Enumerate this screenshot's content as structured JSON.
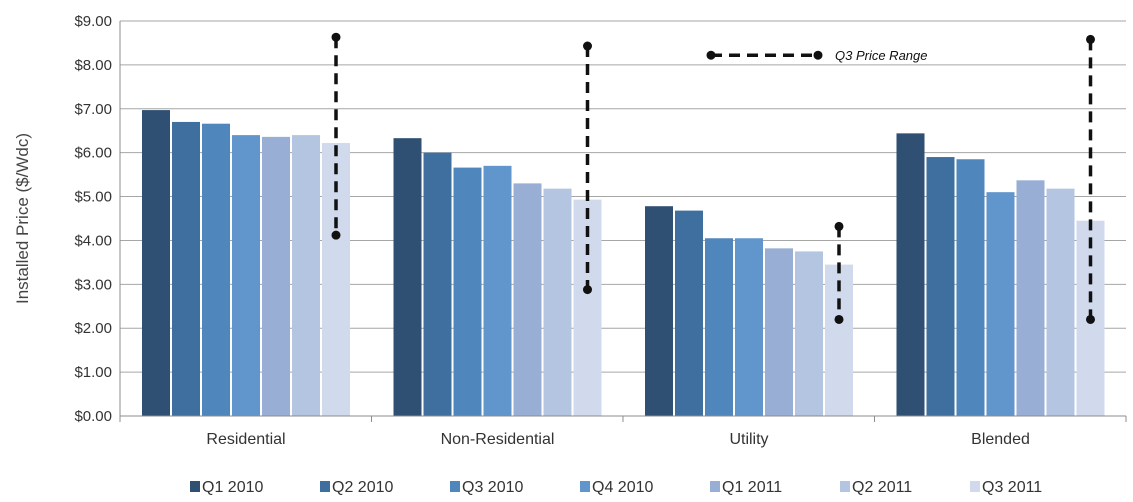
{
  "chart_data": {
    "type": "bar",
    "ylabel": "Installed Price ($/Wdc)",
    "xlabel": "",
    "ylim": [
      0,
      9
    ],
    "y_ticks": [
      "$0.00",
      "$1.00",
      "$2.00",
      "$3.00",
      "$4.00",
      "$5.00",
      "$6.00",
      "$7.00",
      "$8.00",
      "$9.00"
    ],
    "grid": true,
    "legend_position": "bottom",
    "categories": [
      "Residential",
      "Non-Residential",
      "Utility",
      "Blended"
    ],
    "series": [
      {
        "name": "Q1 2010",
        "color": "#2f4f73",
        "values": [
          6.97,
          6.33,
          4.78,
          6.44
        ]
      },
      {
        "name": "Q2 2010",
        "color": "#3f6f9e",
        "values": [
          6.7,
          6.0,
          4.68,
          5.9
        ]
      },
      {
        "name": "Q3 2010",
        "color": "#4f86bc",
        "values": [
          6.66,
          5.66,
          4.05,
          5.85
        ]
      },
      {
        "name": "Q4 2010",
        "color": "#6196cd",
        "values": [
          6.4,
          5.7,
          4.05,
          5.1
        ]
      },
      {
        "name": "Q1 2011",
        "color": "#98aed4",
        "values": [
          6.36,
          5.3,
          3.82,
          5.37
        ]
      },
      {
        "name": "Q2 2011",
        "color": "#b4c5e1",
        "values": [
          6.4,
          5.18,
          3.75,
          5.18
        ]
      },
      {
        "name": "Q3 2011",
        "color": "#d1daec",
        "values": [
          6.22,
          4.93,
          3.45,
          4.45
        ]
      }
    ],
    "q3_price_range": {
      "label": "Q3 Price Range",
      "ranges": [
        {
          "category": "Residential",
          "low": 4.12,
          "high": 8.63
        },
        {
          "category": "Non-Residential",
          "low": 2.88,
          "high": 8.43
        },
        {
          "category": "Utility",
          "low": 2.2,
          "high": 4.32
        },
        {
          "category": "Blended",
          "low": 2.2,
          "high": 8.58
        }
      ]
    }
  }
}
